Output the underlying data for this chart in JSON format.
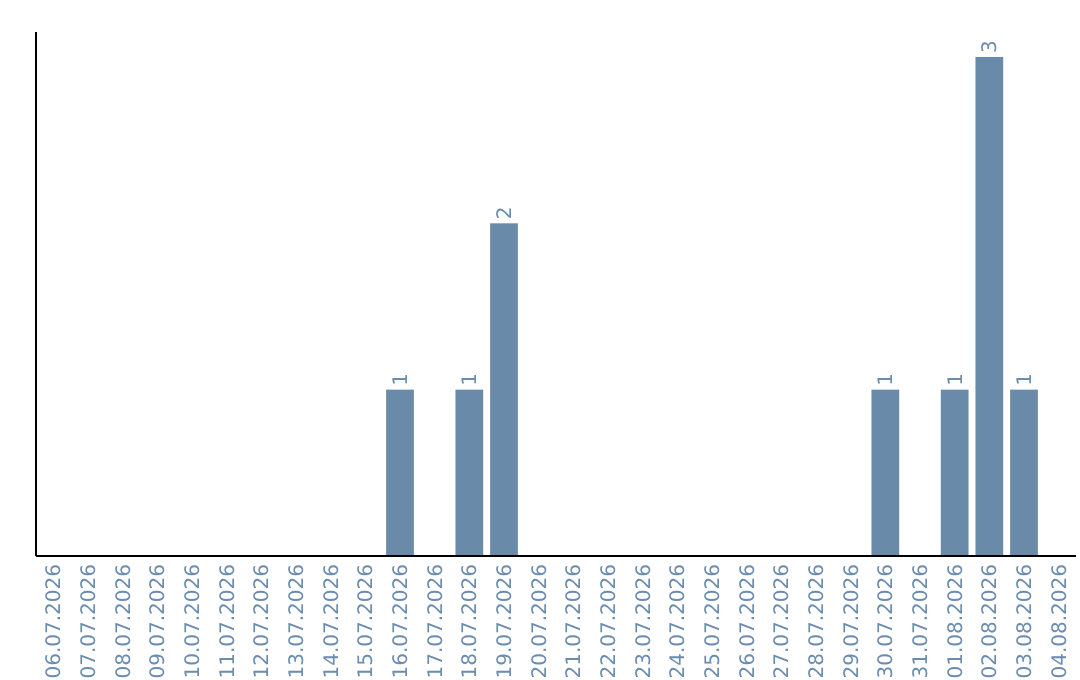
{
  "chart_data": {
    "type": "bar",
    "categories": [
      "06.07.2026",
      "07.07.2026",
      "08.07.2026",
      "09.07.2026",
      "10.07.2026",
      "11.07.2026",
      "12.07.2026",
      "13.07.2026",
      "14.07.2026",
      "15.07.2026",
      "16.07.2026",
      "17.07.2026",
      "18.07.2026",
      "19.07.2026",
      "20.07.2026",
      "21.07.2026",
      "22.07.2026",
      "23.07.2026",
      "24.07.2026",
      "25.07.2026",
      "26.07.2026",
      "27.07.2026",
      "28.07.2026",
      "29.07.2026",
      "30.07.2026",
      "31.07.2026",
      "01.08.2026",
      "02.08.2026",
      "03.08.2026",
      "04.08.2026"
    ],
    "values": [
      0,
      0,
      0,
      0,
      0,
      0,
      0,
      0,
      0,
      0,
      1,
      0,
      1,
      2,
      0,
      0,
      0,
      0,
      0,
      0,
      0,
      0,
      0,
      0,
      1,
      0,
      1,
      3,
      1,
      0
    ],
    "value_labels": [
      null,
      null,
      null,
      null,
      null,
      null,
      null,
      null,
      null,
      null,
      "1",
      null,
      "1",
      "2",
      null,
      null,
      null,
      null,
      null,
      null,
      null,
      null,
      null,
      null,
      "1",
      null,
      "1",
      "3",
      "1",
      null
    ],
    "color": "#6a8aaa"
  }
}
